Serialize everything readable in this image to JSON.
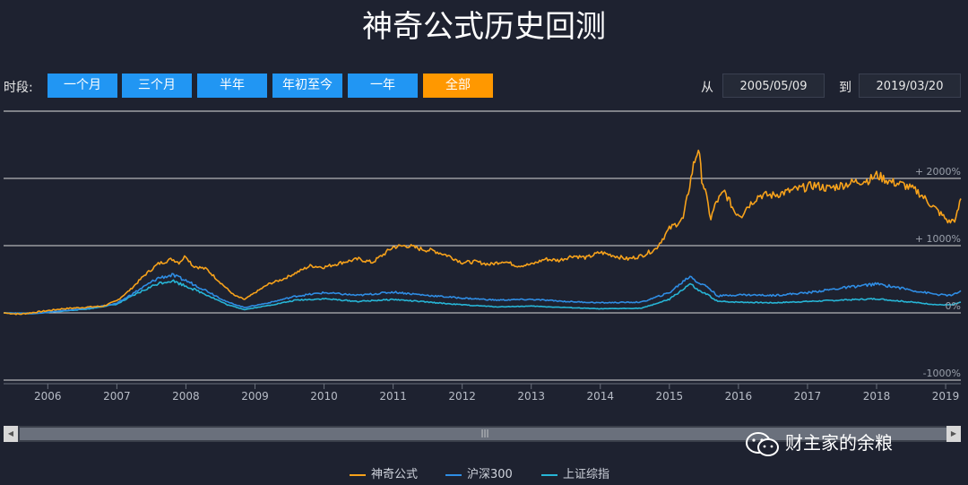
{
  "title": "神奇公式历史回测",
  "toolbar": {
    "period_label": "时段:",
    "ranges": [
      {
        "label": "一个月",
        "active": false
      },
      {
        "label": "三个月",
        "active": false
      },
      {
        "label": "半年",
        "active": false
      },
      {
        "label": "年初至今",
        "active": false
      },
      {
        "label": "一年",
        "active": false
      },
      {
        "label": "全部",
        "active": true
      }
    ],
    "from_label": "从",
    "from_value": "2005/05/09",
    "to_label": "到",
    "to_value": "2019/03/20"
  },
  "watermark": {
    "text": "财主家的余粮",
    "icon": "wechat-icon"
  },
  "colors": {
    "magic": "#f7a21b",
    "hs300": "#2f8de4",
    "sh": "#27b5d6",
    "active": "#ff9800",
    "button": "#2196f3"
  },
  "chart_data": {
    "type": "line",
    "x_ticks": [
      "2006",
      "2007",
      "2008",
      "2009",
      "2010",
      "2011",
      "2012",
      "2013",
      "2014",
      "2015",
      "2016",
      "2017",
      "2018",
      "2019"
    ],
    "y_tick_labels": [
      "+ 2000%",
      "+ 1000%",
      "0%",
      "-1000%"
    ],
    "y_tick_values": [
      2000,
      1000,
      0,
      -1000
    ],
    "ylim": [
      -1000,
      3000
    ],
    "xlim": [
      2005.36,
      2019.22
    ],
    "grid": true,
    "legend": "bottom",
    "series": [
      {
        "name": "神奇公式",
        "color": "#f7a21b",
        "x": [
          2005.36,
          2005.6,
          2005.9,
          2006.2,
          2006.5,
          2006.8,
          2007.0,
          2007.2,
          2007.4,
          2007.6,
          2007.8,
          2007.9,
          2008.0,
          2008.1,
          2008.3,
          2008.5,
          2008.7,
          2008.85,
          2009.0,
          2009.2,
          2009.4,
          2009.6,
          2009.8,
          2010.0,
          2010.3,
          2010.5,
          2010.7,
          2010.9,
          2011.0,
          2011.2,
          2011.4,
          2011.6,
          2011.8,
          2012.0,
          2012.2,
          2012.4,
          2012.6,
          2012.8,
          2013.0,
          2013.2,
          2013.4,
          2013.6,
          2013.8,
          2014.0,
          2014.2,
          2014.4,
          2014.6,
          2014.8,
          2015.0,
          2015.2,
          2015.35,
          2015.42,
          2015.47,
          2015.52,
          2015.6,
          2015.68,
          2015.8,
          2015.95,
          2016.05,
          2016.1,
          2016.3,
          2016.5,
          2016.7,
          2016.9,
          2017.1,
          2017.3,
          2017.5,
          2017.7,
          2017.9,
          2018.0,
          2018.1,
          2018.2,
          2018.4,
          2018.6,
          2018.8,
          2018.95,
          2019.05,
          2019.15,
          2019.22
        ],
        "y": [
          0,
          -20,
          20,
          60,
          80,
          100,
          180,
          350,
          560,
          730,
          800,
          750,
          850,
          700,
          650,
          450,
          260,
          200,
          300,
          430,
          500,
          600,
          700,
          680,
          760,
          800,
          750,
          900,
          980,
          1000,
          950,
          920,
          850,
          750,
          760,
          720,
          770,
          700,
          720,
          800,
          780,
          850,
          820,
          900,
          850,
          800,
          850,
          950,
          1250,
          1400,
          2200,
          2450,
          2000,
          1800,
          1400,
          1650,
          1800,
          1500,
          1450,
          1550,
          1750,
          1750,
          1800,
          1850,
          1900,
          1850,
          1900,
          1950,
          1980,
          2050,
          2000,
          1950,
          1900,
          1800,
          1600,
          1450,
          1350,
          1400,
          1700
        ]
      },
      {
        "name": "沪深300",
        "color": "#2f8de4",
        "x": [
          2005.36,
          2005.8,
          2006.2,
          2006.6,
          2007.0,
          2007.3,
          2007.6,
          2007.8,
          2008.0,
          2008.3,
          2008.6,
          2008.85,
          2009.2,
          2009.6,
          2010.0,
          2010.5,
          2011.0,
          2011.5,
          2012.0,
          2012.5,
          2013.0,
          2013.5,
          2014.0,
          2014.6,
          2015.0,
          2015.3,
          2015.42,
          2015.55,
          2015.7,
          2016.0,
          2016.5,
          2017.0,
          2017.5,
          2018.0,
          2018.3,
          2018.6,
          2018.9,
          2019.1,
          2019.22
        ],
        "y": [
          0,
          -10,
          30,
          70,
          140,
          330,
          520,
          560,
          480,
          330,
          160,
          80,
          150,
          250,
          300,
          260,
          310,
          260,
          220,
          190,
          200,
          170,
          150,
          160,
          300,
          550,
          450,
          390,
          250,
          270,
          260,
          300,
          370,
          430,
          380,
          320,
          270,
          260,
          330
        ]
      },
      {
        "name": "上证综指",
        "color": "#27b5d6",
        "x": [
          2005.36,
          2005.8,
          2006.2,
          2006.6,
          2007.0,
          2007.3,
          2007.6,
          2007.8,
          2008.0,
          2008.3,
          2008.6,
          2008.85,
          2009.2,
          2009.6,
          2010.0,
          2010.5,
          2011.0,
          2011.5,
          2012.0,
          2012.5,
          2013.0,
          2013.5,
          2014.0,
          2014.6,
          2015.0,
          2015.3,
          2015.42,
          2015.55,
          2015.7,
          2016.0,
          2016.5,
          2017.0,
          2017.5,
          2018.0,
          2018.3,
          2018.6,
          2018.9,
          2019.1,
          2019.22
        ],
        "y": [
          0,
          -10,
          25,
          60,
          130,
          290,
          440,
          480,
          400,
          270,
          120,
          50,
          110,
          190,
          210,
          170,
          200,
          160,
          120,
          90,
          100,
          80,
          60,
          70,
          200,
          430,
          330,
          270,
          170,
          160,
          150,
          170,
          190,
          210,
          180,
          150,
          120,
          120,
          160
        ]
      }
    ]
  }
}
